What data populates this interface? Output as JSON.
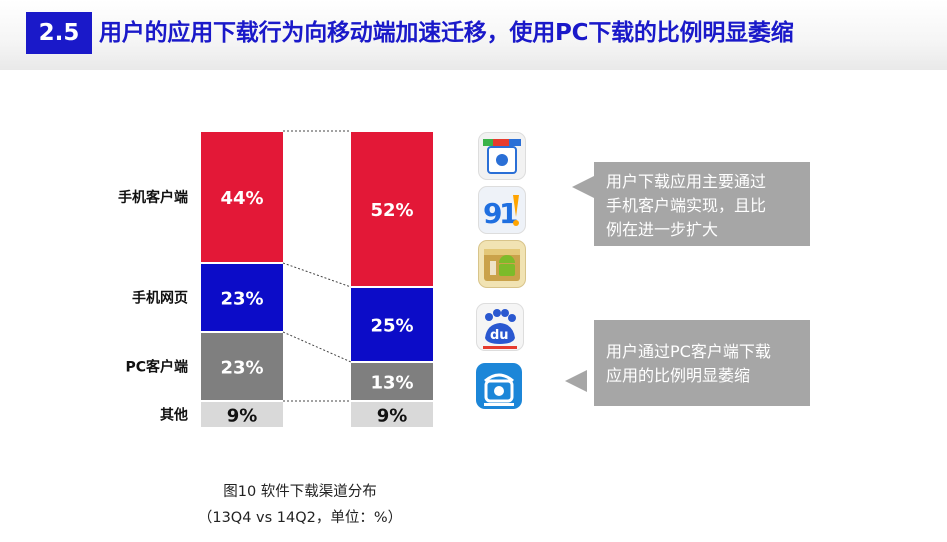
{
  "header": {
    "section_number": "2.5",
    "title": "用户的应用下载行为向移动端加速迁移，使用PC下载的比例明显萎缩"
  },
  "chart_data": {
    "type": "bar",
    "stacked": true,
    "categories": [
      "13Q4",
      "14Q2"
    ],
    "series": [
      {
        "name": "其他",
        "values": [
          9,
          9
        ],
        "color": "#d9d9d9"
      },
      {
        "name": "PC客户端",
        "values": [
          23,
          13
        ],
        "color": "#7f7f7f"
      },
      {
        "name": "手机网页",
        "values": [
          23,
          25
        ],
        "color": "#0c0cc8"
      },
      {
        "name": "手机客户端",
        "values": [
          44,
          52
        ],
        "color": "#e31837"
      }
    ],
    "value_labels": [
      {
        "series": "其他",
        "labels": [
          "9%",
          "9%"
        ]
      },
      {
        "series": "PC客户端",
        "labels": [
          "23%",
          "13%"
        ]
      },
      {
        "series": "手机网页",
        "labels": [
          "23%",
          "25%"
        ]
      },
      {
        "series": "手机客户端",
        "labels": [
          "44%",
          "52%"
        ]
      }
    ],
    "ylim": [
      0,
      100
    ],
    "legend": "left",
    "grid": false,
    "caption": "图10 软件下载渠道分布",
    "subcaption": "（13Q4 vs 14Q2，单位：%）"
  },
  "callouts": [
    {
      "text_lines": [
        "用户下载应用主要通过",
        "手机客户端实现，且比",
        "例在进一步扩大"
      ]
    },
    {
      "text_lines": [
        "用户通过PC客户端下载",
        "应用的比例明显萎缩"
      ]
    }
  ],
  "apps": [
    {
      "name": "baidu-appstore-icon",
      "colors": [
        "#ffffff",
        "#2a6fd6",
        "#e63b2e"
      ]
    },
    {
      "name": "91-assistant-icon",
      "colors": [
        "#1f6fe0",
        "#ffa400"
      ]
    },
    {
      "name": "android-market-icon",
      "colors": [
        "#caa24a",
        "#7dbb2a"
      ]
    },
    {
      "name": "baidu-mobile-assistant-icon",
      "colors": [
        "#ffffff",
        "#2a58d0",
        "#e63b2e"
      ]
    },
    {
      "name": "wandoujia-icon",
      "colors": [
        "#1c86d8",
        "#ffffff"
      ]
    }
  ]
}
